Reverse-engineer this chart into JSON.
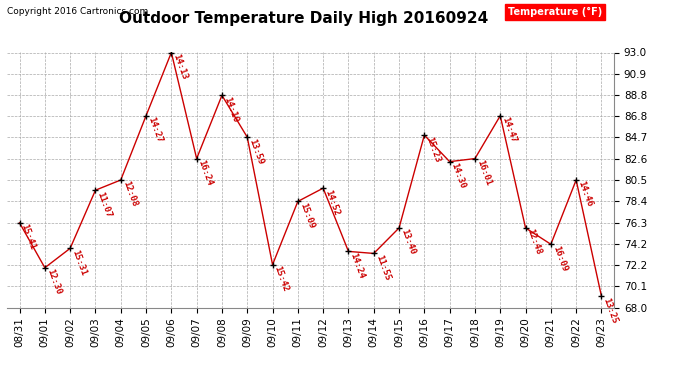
{
  "title": "Outdoor Temperature Daily High 20160924",
  "copyright_text": "Copyright 2016 Cartronics.com",
  "legend_label": "Temperature (°F)",
  "dates": [
    "08/31",
    "09/01",
    "09/02",
    "09/03",
    "09/04",
    "09/05",
    "09/06",
    "09/07",
    "09/08",
    "09/09",
    "09/10",
    "09/11",
    "09/12",
    "09/13",
    "09/14",
    "09/15",
    "09/16",
    "09/17",
    "09/18",
    "09/19",
    "09/20",
    "09/21",
    "09/22",
    "09/23"
  ],
  "temps": [
    76.3,
    71.9,
    73.8,
    79.5,
    80.5,
    86.8,
    93.0,
    82.6,
    88.8,
    84.7,
    72.2,
    78.4,
    79.7,
    73.5,
    73.3,
    75.8,
    84.9,
    82.3,
    82.6,
    86.8,
    75.8,
    74.2,
    80.5,
    69.1
  ],
  "time_labels": [
    "15:41",
    "12:30",
    "15:31",
    "11:07",
    "12:08",
    "14:27",
    "14:13",
    "16:24",
    "14:10",
    "13:59",
    "15:42",
    "15:09",
    "14:52",
    "14:24",
    "11:55",
    "13:40",
    "15:23",
    "14:30",
    "16:01",
    "14:47",
    "12:48",
    "16:09",
    "14:46",
    "13:25"
  ],
  "ylim_min": 68.0,
  "ylim_max": 93.0,
  "yticks": [
    68.0,
    70.1,
    72.2,
    74.2,
    76.3,
    78.4,
    80.5,
    82.6,
    84.7,
    86.8,
    88.8,
    90.9,
    93.0
  ],
  "line_color": "#cc0000",
  "marker_color": "#000000",
  "label_color": "#cc0000",
  "bg_color": "#ffffff",
  "grid_color": "#aaaaaa",
  "title_fontsize": 11,
  "tick_fontsize": 7.5,
  "label_fontsize": 6.5,
  "copyright_fontsize": 6.5,
  "legend_fontsize": 7
}
